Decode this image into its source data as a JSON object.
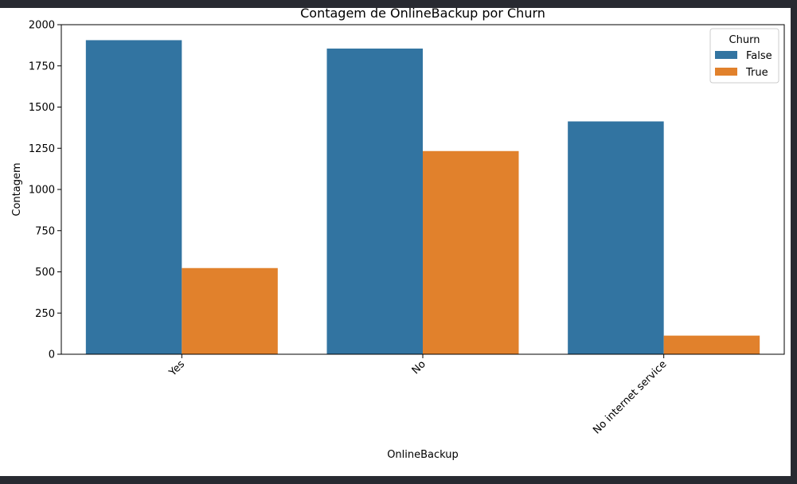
{
  "chart_data": {
    "type": "bar",
    "title": "Contagem de OnlineBackup por Churn",
    "xlabel": "OnlineBackup",
    "ylabel": "Contagem",
    "categories": [
      "Yes",
      "No",
      "No internet service"
    ],
    "series": [
      {
        "name": "False",
        "values": [
          1906,
          1855,
          1413
        ]
      },
      {
        "name": "True",
        "values": [
          523,
          1233,
          113
        ]
      }
    ],
    "ylim": [
      0,
      2000
    ],
    "yticks": [
      0,
      250,
      500,
      750,
      1000,
      1250,
      1500,
      1750,
      2000
    ],
    "legend": {
      "title": "Churn",
      "position": "top-right"
    },
    "grid": false,
    "colors": {
      "False": "#3274a1",
      "True": "#e1812c"
    }
  }
}
